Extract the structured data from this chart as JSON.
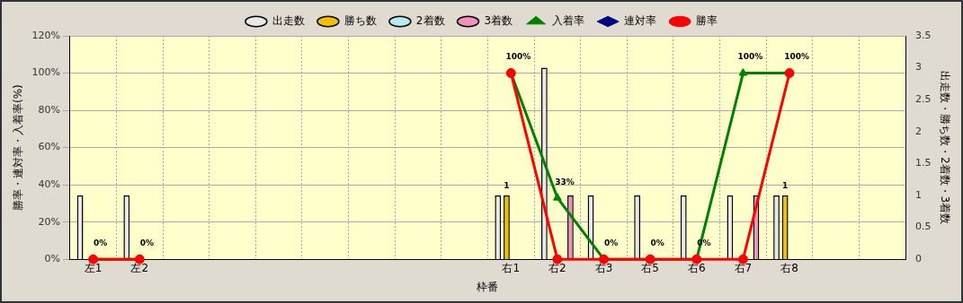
{
  "chart_data": {
    "type": "bar",
    "xlabel": "枠番",
    "ylabel": "勝率・連対率・入着率(%)",
    "y2label": "出走数・勝ち数・2着数・3着数",
    "categories": [
      "左1",
      "左2",
      null,
      null,
      null,
      null,
      null,
      null,
      null,
      "右1",
      "右2",
      "右3",
      "右5",
      "右6",
      "右7",
      "右8",
      null,
      null
    ],
    "series": [
      {
        "name": "出走数",
        "type": "bar",
        "axis": "y2",
        "color": "#e8e8e8",
        "values": [
          1,
          1,
          null,
          null,
          null,
          null,
          null,
          null,
          null,
          1,
          3,
          1,
          1,
          1,
          1,
          1,
          null,
          null
        ]
      },
      {
        "name": "勝ち数",
        "axis": "y2",
        "color": "#f0c000",
        "values": [
          null,
          null,
          null,
          null,
          null,
          null,
          null,
          null,
          null,
          1,
          null,
          null,
          null,
          null,
          null,
          1,
          null,
          null
        ],
        "value_labels": [
          null,
          null,
          null,
          null,
          null,
          null,
          null,
          null,
          null,
          "1",
          null,
          null,
          null,
          null,
          null,
          "1",
          null,
          null
        ]
      },
      {
        "name": "2着数",
        "axis": "y2",
        "color": "#b8e8f0",
        "values": [
          null,
          null,
          null,
          null,
          null,
          null,
          null,
          null,
          null,
          null,
          null,
          null,
          null,
          null,
          null,
          null,
          null,
          null
        ]
      },
      {
        "name": "3着数",
        "axis": "y2",
        "color": "#f090c0",
        "values": [
          null,
          null,
          null,
          null,
          null,
          null,
          null,
          null,
          null,
          null,
          1,
          null,
          null,
          null,
          1,
          null,
          null,
          null
        ]
      },
      {
        "name": "入着率",
        "type": "line",
        "axis": "y",
        "marker": "triangle",
        "color": "#008000",
        "values": [
          0,
          0,
          null,
          null,
          null,
          null,
          null,
          null,
          null,
          100,
          33,
          0,
          0,
          0,
          100,
          100,
          null,
          null
        ],
        "value_labels": [
          "0%",
          "0%",
          null,
          null,
          null,
          null,
          null,
          null,
          null,
          "100%",
          "33%",
          "0%",
          "0%",
          "0%",
          "100%",
          "100%",
          null,
          null
        ]
      },
      {
        "name": "連対率",
        "type": "line",
        "axis": "y",
        "marker": "diamond",
        "color": "#000080",
        "values": [
          null,
          null,
          null,
          null,
          null,
          null,
          null,
          null,
          null,
          null,
          null,
          null,
          null,
          null,
          null,
          null,
          null,
          null
        ]
      },
      {
        "name": "勝率",
        "type": "line",
        "axis": "y",
        "marker": "circle",
        "color": "#ff0000",
        "values": [
          0,
          0,
          null,
          null,
          null,
          null,
          null,
          null,
          null,
          100,
          0,
          0,
          0,
          0,
          0,
          100,
          null,
          null
        ]
      }
    ],
    "ylim": [
      0,
      120
    ],
    "yticks": [
      {
        "value": 0,
        "label": "0%"
      },
      {
        "value": 20,
        "label": "20%"
      },
      {
        "value": 40,
        "label": "40%"
      },
      {
        "value": 60,
        "label": "60%"
      },
      {
        "value": 80,
        "label": "80%"
      },
      {
        "value": 100,
        "label": "100%"
      },
      {
        "value": 120,
        "label": "120%"
      }
    ],
    "y2lim": [
      0,
      3.5
    ],
    "y2ticks": [
      0,
      0.5,
      1,
      1.5,
      2,
      2.5,
      3,
      3.5
    ],
    "grid": true,
    "legend": "top"
  }
}
